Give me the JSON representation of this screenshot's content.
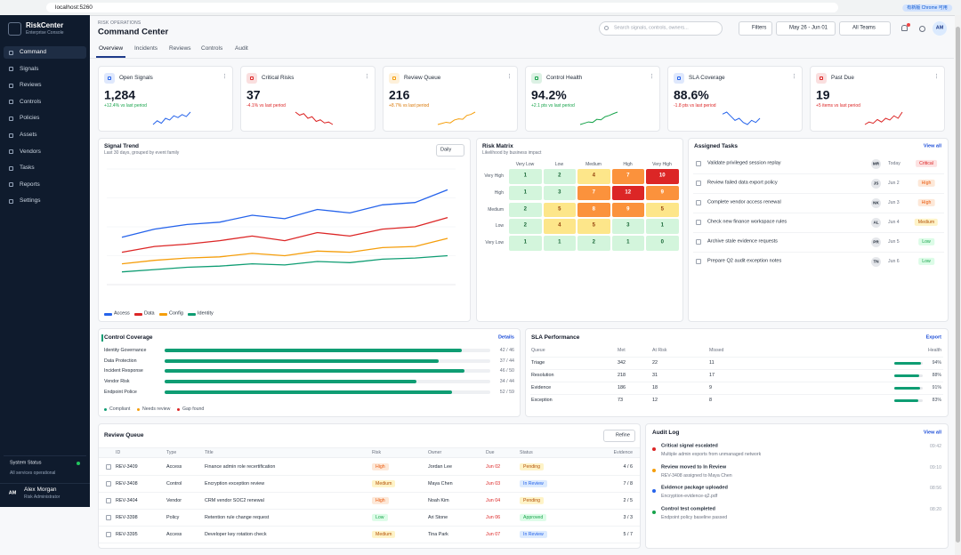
{
  "browser": {
    "url": "localhost:5260",
    "update_notice": "有新版 Chrome 可用"
  },
  "sidebar": {
    "brand": "RiskCenter",
    "brand_subtitle": "Enterprise Console",
    "nav": [
      "Command",
      "Signals",
      "Reviews",
      "Controls",
      "Policies",
      "Assets",
      "Vendors",
      "Tasks",
      "Reports",
      "Settings"
    ],
    "status_title": "System Status",
    "status_text": "All services operational",
    "user": {
      "initials": "AM",
      "name": "Alex Morgan",
      "role": "Risk Administrator"
    }
  },
  "header": {
    "eyebrow": "RISK OPERATIONS",
    "title": "Command Center",
    "search_placeholder": "Search signals, controls, owners...",
    "filters": "Filters",
    "date_range": "May 26 - Jun 01",
    "team": "All Teams",
    "avatar": "AM",
    "tabs": [
      "Overview",
      "Incidents",
      "Reviews",
      "Controls",
      "Audit"
    ]
  },
  "kpis": [
    {
      "label": "Open Signals",
      "value": "1,284",
      "delta": "+12.4% vs last period",
      "color": "#2563eb",
      "delta_color": "#16a34a",
      "spark": [
        20,
        35,
        25,
        45,
        38,
        55,
        48,
        60,
        52,
        70
      ]
    },
    {
      "label": "Critical Risks",
      "value": "37",
      "delta": "-4.1% vs last period",
      "color": "#dc2626",
      "delta_color": "#dc2626",
      "spark": [
        70,
        60,
        65,
        50,
        55,
        40,
        45,
        35,
        38,
        30
      ]
    },
    {
      "label": "Review Queue",
      "value": "216",
      "delta": "+8.7% vs last period",
      "color": "#f59e0b",
      "delta_color": "#d97706",
      "spark": [
        15,
        20,
        25,
        22,
        35,
        40,
        38,
        55,
        60,
        70
      ]
    },
    {
      "label": "Control Health",
      "value": "94.2%",
      "delta": "+2.1 pts vs last period",
      "color": "#16a34a",
      "delta_color": "#16a34a",
      "spark": [
        20,
        25,
        30,
        28,
        40,
        38,
        50,
        55,
        62,
        68
      ]
    },
    {
      "label": "SLA Coverage",
      "value": "88.6%",
      "delta": "-1.8 pts vs last period",
      "color": "#2563eb",
      "delta_color": "#dc2626",
      "spark": [
        55,
        60,
        50,
        40,
        45,
        35,
        30,
        40,
        35,
        45
      ]
    },
    {
      "label": "Past Due",
      "value": "19",
      "delta": "+5 items vs last period",
      "color": "#dc2626",
      "delta_color": "#dc2626",
      "spark": [
        20,
        30,
        25,
        40,
        30,
        45,
        38,
        55,
        45,
        70
      ]
    }
  ],
  "chart_data": {
    "type": "line",
    "title": "Signal Trend",
    "subtitle": "Last 30 days, grouped by event family",
    "interval": "Daily",
    "series": [
      {
        "name": "Access",
        "color": "#2563eb",
        "values": [
          41,
          48,
          52,
          54,
          60,
          57,
          65,
          62,
          69,
          71,
          82
        ]
      },
      {
        "name": "Data",
        "color": "#dc2626",
        "values": [
          28,
          33,
          35,
          38,
          42,
          38,
          45,
          42,
          48,
          50,
          58
        ]
      },
      {
        "name": "Config",
        "color": "#f59e0b",
        "values": [
          18,
          21,
          23,
          24,
          27,
          25,
          29,
          28,
          32,
          33,
          40
        ]
      },
      {
        "name": "Identity",
        "color": "#0f9d73",
        "values": [
          11,
          13,
          15,
          16,
          18,
          17,
          20,
          19,
          22,
          23,
          25
        ]
      }
    ],
    "ylim": [
      0,
      100
    ],
    "yticks": [
      0,
      25,
      50,
      75,
      100
    ],
    "grid": true
  },
  "risk_matrix": {
    "title": "Risk Matrix",
    "subtitle": "Likelihood by business impact",
    "columns": [
      "Very Low",
      "Low",
      "Medium",
      "High",
      "Very High"
    ],
    "rows": [
      {
        "label": "Very High",
        "values": [
          1,
          2,
          4,
          7,
          10
        ]
      },
      {
        "label": "High",
        "values": [
          1,
          3,
          7,
          12,
          9
        ]
      },
      {
        "label": "Medium",
        "values": [
          2,
          5,
          8,
          9,
          5
        ]
      },
      {
        "label": "Low",
        "values": [
          2,
          4,
          5,
          3,
          1
        ]
      },
      {
        "label": "Very Low",
        "values": [
          1,
          1,
          2,
          1,
          0
        ]
      }
    ],
    "color_scale": [
      {
        "min": 0,
        "bg": "#d3f5dc",
        "fg": "#166534"
      },
      {
        "min": 4,
        "bg": "#fde68a",
        "fg": "#92400e"
      },
      {
        "min": 7,
        "bg": "#fb923c",
        "fg": "#ffffff"
      },
      {
        "min": 10,
        "bg": "#dc2626",
        "fg": "#ffffff"
      }
    ]
  },
  "tasks": {
    "title": "Assigned Tasks",
    "link": "View all",
    "items": [
      {
        "text": "Validate privileged session replay",
        "owner": "MR",
        "due": "Today",
        "priority": "Critical"
      },
      {
        "text": "Review failed data export policy",
        "owner": "JS",
        "due": "Jun 2",
        "priority": "High"
      },
      {
        "text": "Complete vendor access renewal",
        "owner": "NK",
        "due": "Jun 3",
        "priority": "High"
      },
      {
        "text": "Check new finance workspace rules",
        "owner": "AL",
        "due": "Jun 4",
        "priority": "Medium"
      },
      {
        "text": "Archive stale evidence requests",
        "owner": "PR",
        "due": "Jun 5",
        "priority": "Low"
      },
      {
        "text": "Prepare Q2 audit exception notes",
        "owner": "TN",
        "due": "Jun 6",
        "priority": "Low"
      }
    ]
  },
  "coverage": {
    "title": "Control Coverage",
    "link": "Details",
    "rows": [
      {
        "name": "Identity Governance",
        "covered": 42,
        "total": 46,
        "label": "42 / 46"
      },
      {
        "name": "Data Protection",
        "covered": 37,
        "total": 44,
        "label": "37 / 44"
      },
      {
        "name": "Incident Response",
        "covered": 46,
        "total": 50,
        "label": "46 / 50"
      },
      {
        "name": "Vendor Risk",
        "covered": 34,
        "total": 44,
        "label": "34 / 44"
      },
      {
        "name": "Endpoint Police",
        "covered": 52,
        "total": 59,
        "label": "52 / 59"
      }
    ],
    "legend": [
      {
        "name": "Compliant",
        "color": "#0f9d73"
      },
      {
        "name": "Needs review",
        "color": "#f59e0b"
      },
      {
        "name": "Gap found",
        "color": "#dc2626"
      }
    ]
  },
  "sla": {
    "title": "SLA Performance",
    "link": "Export",
    "columns": [
      "Queue",
      "Met",
      "At Risk",
      "Missed",
      "Health"
    ],
    "rows": [
      {
        "queue": "Triage",
        "met": 342,
        "at_risk": 22,
        "missed": 11,
        "health": 94,
        "health_label": "94%"
      },
      {
        "queue": "Resolution",
        "met": 218,
        "at_risk": 31,
        "missed": 17,
        "health": 88,
        "health_label": "88%"
      },
      {
        "queue": "Evidence",
        "met": 186,
        "at_risk": 18,
        "missed": 9,
        "health": 91,
        "health_label": "91%"
      },
      {
        "queue": "Exception",
        "met": 73,
        "at_risk": 12,
        "missed": 8,
        "health": 83,
        "health_label": "83%"
      }
    ]
  },
  "review_queue": {
    "title": "Review Queue",
    "action": "Refine",
    "columns": [
      "ID",
      "Type",
      "Title",
      "Risk",
      "Owner",
      "Due",
      "Status",
      "Evidence"
    ],
    "rows": [
      [
        "REV-3409",
        "Access",
        "Finance admin role recertification",
        "High",
        "Jordan Lee",
        "Jun 02",
        "Pending",
        "4 / 6"
      ],
      [
        "REV-3408",
        "Control",
        "Encryption exception review",
        "Medium",
        "Maya Chen",
        "Jun 03",
        "In Review",
        "7 / 8"
      ],
      [
        "REV-3404",
        "Vendor",
        "CRM vendor SOC2 renewal",
        "High",
        "Noah Kim",
        "Jun 04",
        "Pending",
        "2 / 5"
      ],
      [
        "REV-3398",
        "Policy",
        "Retention rule change request",
        "Low",
        "Ari Stone",
        "Jun 06",
        "Approved",
        "3 / 3"
      ],
      [
        "REV-3395",
        "Access",
        "Developer key rotation check",
        "Medium",
        "Tina Park",
        "Jun 07",
        "In Review",
        "5 / 7"
      ]
    ]
  },
  "audit_log": {
    "title": "Audit Log",
    "link": "View all",
    "items": [
      {
        "title": "Critical signal escalated",
        "detail": "Multiple admin exports from unmanaged network",
        "time": "09:42",
        "color": "#dc2626"
      },
      {
        "title": "Review moved to In Review",
        "detail": "REV-3408 assigned to Maya Chen",
        "time": "09:10",
        "color": "#f59e0b"
      },
      {
        "title": "Evidence package uploaded",
        "detail": "Encryption-evidence-q2.pdf",
        "time": "08:56",
        "color": "#2563eb"
      },
      {
        "title": "Control test completed",
        "detail": "Endpoint policy baseline passed",
        "time": "08:20",
        "color": "#16a34a"
      }
    ]
  },
  "badge_colors": {
    "Critical": [
      "#fde2e2",
      "#dc2626"
    ],
    "High": [
      "#fde8d8",
      "#ea580c"
    ],
    "Medium": [
      "#fef3c7",
      "#b45309"
    ],
    "Low": [
      "#dcfce7",
      "#16a34a"
    ],
    "Pending": [
      "#fef3c7",
      "#b45309"
    ],
    "In Review": [
      "#dbeafe",
      "#2563eb"
    ],
    "Approved": [
      "#dcfce7",
      "#16a34a"
    ]
  }
}
